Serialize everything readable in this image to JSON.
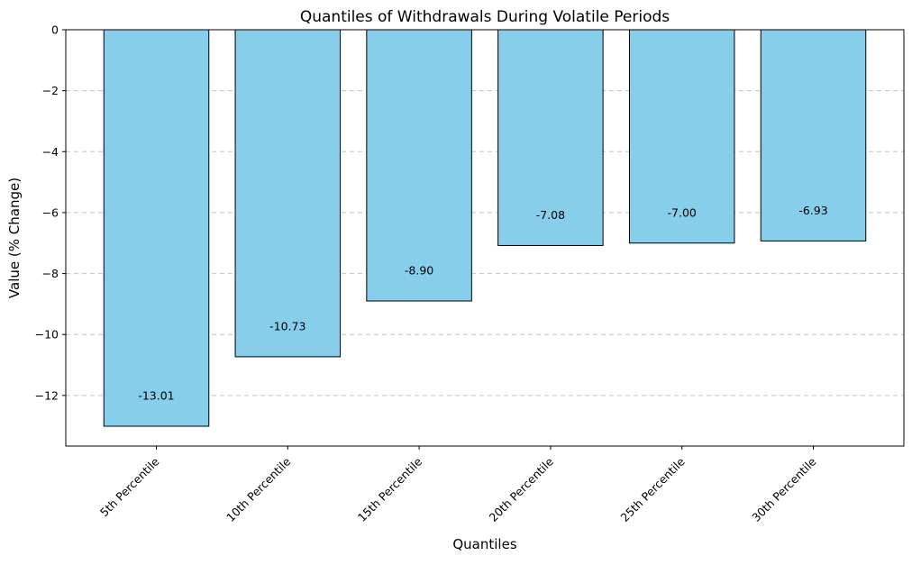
{
  "chart_data": {
    "type": "bar",
    "title": "Quantiles of Withdrawals During Volatile Periods",
    "xlabel": "Quantiles",
    "ylabel": "Value (% Change)",
    "categories": [
      "5th Percentile",
      "10th Percentile",
      "15th Percentile",
      "20th Percentile",
      "25th Percentile",
      "30th Percentile"
    ],
    "values": [
      -13.01,
      -10.73,
      -8.9,
      -7.08,
      -7.0,
      -6.93
    ],
    "value_labels": [
      "-13.01",
      "-10.73",
      "-8.90",
      "-7.08",
      "-7.00",
      "-6.93"
    ],
    "yticks": [
      0,
      -2,
      -4,
      -6,
      -8,
      -10,
      -12
    ],
    "ytick_labels": [
      "0",
      "−2",
      "−4",
      "−6",
      "−8",
      "−10",
      "−12"
    ],
    "ylim": [
      -13.66,
      0
    ],
    "bar_color": "#87CEEB",
    "edge_color": "#000000",
    "grid": "y-dashed",
    "x_tick_rotation": 45
  }
}
